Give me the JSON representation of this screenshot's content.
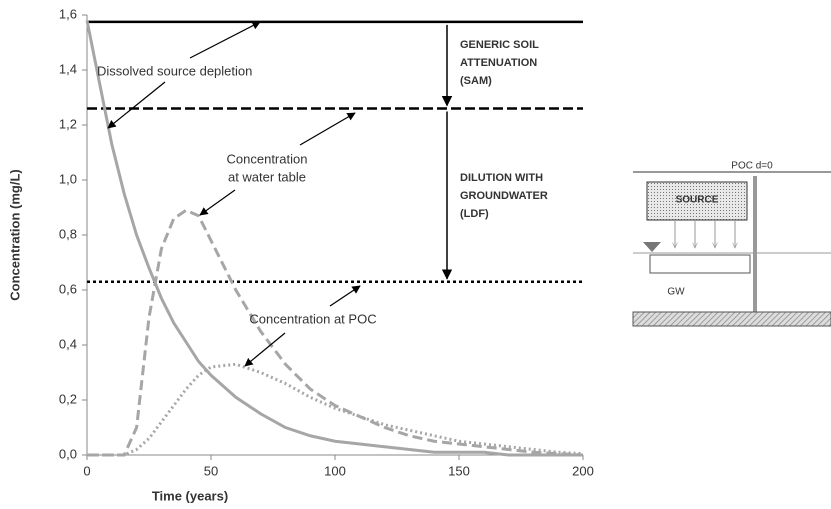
{
  "chart_data": {
    "type": "line",
    "x_label": "Time (years)",
    "y_label": "Concentration (mg/L)",
    "xlim": [
      0,
      200
    ],
    "xticks": [
      0,
      50,
      100,
      150,
      200
    ],
    "ylim": [
      0,
      1.6
    ],
    "yticks": [
      {
        "value": 0,
        "label": "0,0"
      },
      {
        "value": 0.2,
        "label": "0,2"
      },
      {
        "value": 0.4,
        "label": "0,4"
      },
      {
        "value": 0.6,
        "label": "0,6"
      },
      {
        "value": 0.8,
        "label": "0,8"
      },
      {
        "value": 1.0,
        "label": "1,0"
      },
      {
        "value": 1.2,
        "label": "1,2"
      },
      {
        "value": 1.4,
        "label": "1,4"
      },
      {
        "value": 1.6,
        "label": "1,6"
      }
    ],
    "x": [
      0,
      10,
      15,
      20,
      25,
      30,
      35,
      40,
      45,
      50,
      60,
      70,
      80,
      90,
      100,
      110,
      120,
      130,
      140,
      150,
      160,
      170,
      180,
      190,
      200
    ],
    "series": [
      {
        "color": "#a6a6a6",
        "style": "solid",
        "values": [
          1.58,
          1.13,
          0.95,
          0.8,
          0.68,
          0.57,
          0.48,
          0.41,
          0.34,
          0.29,
          0.21,
          0.15,
          0.1,
          0.07,
          0.05,
          0.04,
          0.03,
          0.02,
          0.01,
          0.01,
          0.01,
          0,
          0,
          0,
          0
        ]
      },
      {
        "color": "#a6a6a6",
        "style": "dashed",
        "values": [
          0,
          0,
          0,
          0.1,
          0.5,
          0.75,
          0.86,
          0.89,
          0.87,
          0.78,
          0.6,
          0.45,
          0.33,
          0.24,
          0.18,
          0.14,
          0.1,
          0.07,
          0.05,
          0.04,
          0.03,
          0.02,
          0.01,
          0.005,
          0
        ]
      },
      {
        "color": "#a6a6a6",
        "style": "dotted",
        "values": [
          0,
          0,
          0,
          0.02,
          0.06,
          0.12,
          0.18,
          0.24,
          0.29,
          0.32,
          0.33,
          0.3,
          0.26,
          0.21,
          0.17,
          0.14,
          0.11,
          0.09,
          0.07,
          0.05,
          0.04,
          0.03,
          0.02,
          0.01,
          0.005
        ]
      }
    ],
    "reference_lines": [
      {
        "value": 1.575,
        "style": "solid",
        "color": "#000000"
      },
      {
        "value": 1.26,
        "style": "dashed",
        "color": "#000000"
      },
      {
        "value": 0.63,
        "style": "dotted",
        "color": "#000000"
      }
    ],
    "annotations": [
      {
        "lines": [
          "Dissolved source depletion"
        ]
      },
      {
        "lines": [
          "Concentration",
          "at water table"
        ]
      },
      {
        "lines": [
          "Concentration at POC"
        ]
      },
      {
        "lines": [
          "GENERIC SOIL",
          "ATTENUATION",
          "(SAM)"
        ]
      },
      {
        "lines": [
          "DILUTION WITH",
          "GROUNDWATER",
          "(LDF)"
        ]
      }
    ]
  },
  "diagram": {
    "poc_label": "POC d=0",
    "source_label": "SOURCE",
    "gw_label": "GW"
  }
}
